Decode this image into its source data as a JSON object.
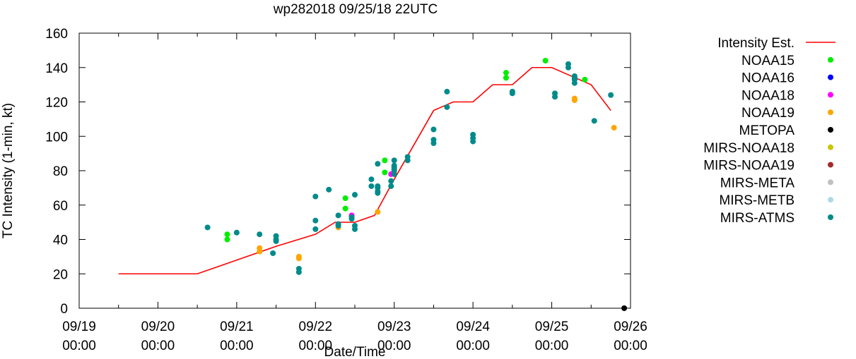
{
  "chart_data": {
    "type": "scatter",
    "title": "wp282018 09/25/18 22UTC",
    "xlabel": "Date/Time",
    "ylabel": "TC Intensity (1-min, kt)",
    "xlim": [
      0,
      7
    ],
    "ylim": [
      0,
      160
    ],
    "grid": false,
    "legend_position": "outside-right",
    "x_unit_note": "x values are days from 09/19 00:00",
    "x_ticks": [
      {
        "x": 0,
        "label": [
          "09/19",
          "00:00"
        ]
      },
      {
        "x": 1,
        "label": [
          "09/20",
          "00:00"
        ]
      },
      {
        "x": 2,
        "label": [
          "09/21",
          "00:00"
        ]
      },
      {
        "x": 3,
        "label": [
          "09/22",
          "00:00"
        ]
      },
      {
        "x": 4,
        "label": [
          "09/23",
          "00:00"
        ]
      },
      {
        "x": 5,
        "label": [
          "09/24",
          "00:00"
        ]
      },
      {
        "x": 6,
        "label": [
          "09/25",
          "00:00"
        ]
      },
      {
        "x": 7,
        "label": [
          "09/26",
          "00:00"
        ]
      }
    ],
    "y_ticks": [
      0,
      20,
      40,
      60,
      80,
      100,
      120,
      140,
      160
    ],
    "series": [
      {
        "name": "Intensity Est.",
        "kind": "line",
        "color": "#ff0000",
        "points": [
          [
            0.5,
            20
          ],
          [
            1.5,
            20
          ],
          [
            2.0,
            28
          ],
          [
            2.5,
            36
          ],
          [
            3.0,
            43
          ],
          [
            3.25,
            50
          ],
          [
            3.5,
            50
          ],
          [
            3.75,
            54
          ],
          [
            4.0,
            75
          ],
          [
            4.5,
            115
          ],
          [
            4.75,
            120
          ],
          [
            5.0,
            120
          ],
          [
            5.25,
            130
          ],
          [
            5.5,
            130
          ],
          [
            5.75,
            140
          ],
          [
            6.0,
            140
          ],
          [
            6.25,
            135
          ],
          [
            6.5,
            130
          ],
          [
            6.75,
            115
          ]
        ]
      },
      {
        "name": "NOAA15",
        "kind": "points",
        "color": "#00ee00",
        "points": [
          [
            1.88,
            43
          ],
          [
            1.88,
            40
          ],
          [
            3.38,
            64
          ],
          [
            3.38,
            58
          ],
          [
            3.88,
            86
          ],
          [
            3.88,
            79
          ],
          [
            5.42,
            137
          ],
          [
            5.42,
            134
          ],
          [
            5.92,
            144
          ],
          [
            6.42,
            133
          ]
        ]
      },
      {
        "name": "NOAA16",
        "kind": "points",
        "color": "#0000ff",
        "points": []
      },
      {
        "name": "NOAA18",
        "kind": "points",
        "color": "#ff00ff",
        "points": [
          [
            3.46,
            54
          ],
          [
            3.96,
            78
          ]
        ]
      },
      {
        "name": "NOAA19",
        "kind": "points",
        "color": "#ffa500",
        "points": [
          [
            2.29,
            35
          ],
          [
            2.29,
            33
          ],
          [
            2.79,
            30
          ],
          [
            2.79,
            29
          ],
          [
            3.29,
            47
          ],
          [
            3.79,
            56
          ],
          [
            6.29,
            122
          ],
          [
            6.29,
            121
          ],
          [
            6.79,
            105
          ]
        ]
      },
      {
        "name": "METOPA",
        "kind": "points",
        "color": "#000000",
        "points": [
          [
            6.92,
            0
          ]
        ]
      },
      {
        "name": "MIRS-NOAA18",
        "kind": "points",
        "color": "#c8c800",
        "points": []
      },
      {
        "name": "MIRS-NOAA19",
        "kind": "points",
        "color": "#a52a2a",
        "points": []
      },
      {
        "name": "MIRS-META",
        "kind": "points",
        "color": "#c0c0c0",
        "points": []
      },
      {
        "name": "MIRS-METB",
        "kind": "points",
        "color": "#add8e6",
        "points": []
      },
      {
        "name": "MIRS-ATMS",
        "kind": "points",
        "color": "#008b8b",
        "points": [
          [
            1.63,
            47
          ],
          [
            2.0,
            44
          ],
          [
            2.29,
            43
          ],
          [
            2.46,
            32
          ],
          [
            2.5,
            42
          ],
          [
            2.5,
            40
          ],
          [
            2.5,
            39
          ],
          [
            2.79,
            23
          ],
          [
            2.79,
            21
          ],
          [
            3.0,
            65
          ],
          [
            3.0,
            51
          ],
          [
            3.0,
            46
          ],
          [
            3.17,
            69
          ],
          [
            3.29,
            54
          ],
          [
            3.29,
            49
          ],
          [
            3.29,
            48
          ],
          [
            3.46,
            53
          ],
          [
            3.46,
            52
          ],
          [
            3.5,
            66
          ],
          [
            3.5,
            48
          ],
          [
            3.5,
            46
          ],
          [
            3.71,
            75
          ],
          [
            3.71,
            71
          ],
          [
            3.79,
            84
          ],
          [
            3.79,
            71
          ],
          [
            3.79,
            70
          ],
          [
            3.79,
            68
          ],
          [
            3.79,
            67
          ],
          [
            3.96,
            74
          ],
          [
            3.96,
            71
          ],
          [
            4.0,
            86
          ],
          [
            4.0,
            83
          ],
          [
            4.0,
            82
          ],
          [
            4.0,
            81
          ],
          [
            4.0,
            80
          ],
          [
            4.0,
            78
          ],
          [
            4.17,
            88
          ],
          [
            4.17,
            86
          ],
          [
            4.5,
            104
          ],
          [
            4.5,
            98
          ],
          [
            4.5,
            96
          ],
          [
            4.67,
            126
          ],
          [
            4.67,
            117
          ],
          [
            5.0,
            101
          ],
          [
            5.0,
            99
          ],
          [
            5.0,
            97
          ],
          [
            5.5,
            126
          ],
          [
            5.5,
            125
          ],
          [
            6.04,
            125
          ],
          [
            6.04,
            123
          ],
          [
            6.21,
            142
          ],
          [
            6.21,
            140
          ],
          [
            6.29,
            135
          ],
          [
            6.29,
            134
          ],
          [
            6.29,
            133
          ],
          [
            6.29,
            131
          ],
          [
            6.54,
            109
          ],
          [
            6.75,
            124
          ]
        ]
      }
    ]
  }
}
